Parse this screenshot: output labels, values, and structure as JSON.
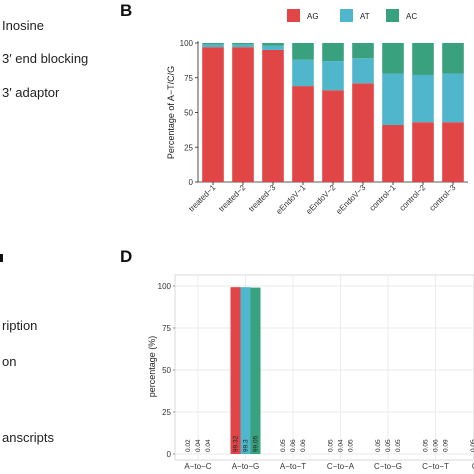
{
  "left_panel": {
    "items_top": [
      "Inosine",
      "3′ end blocking",
      "3′ adaptor"
    ],
    "items_bottom": [
      "ription",
      "on",
      "anscripts"
    ]
  },
  "panel_letters": {
    "b": "B",
    "d": "D"
  },
  "colors": {
    "AG": "#e04646",
    "AT": "#4fb6cc",
    "AC": "#3aa17e"
  },
  "chart_data": [
    {
      "type": "bar",
      "stacked": true,
      "ylabel": "Percentage of A−T/C/G",
      "xlabel": "",
      "ylim": [
        0,
        100
      ],
      "yticks": [
        0,
        25,
        50,
        75,
        100
      ],
      "legend_position": "top",
      "categories": [
        "treated−1",
        "treated−2",
        "treated−3",
        "eEndoV−1",
        "eEndoV−2",
        "eEndoV−3",
        "control−1",
        "control−2",
        "control−3"
      ],
      "series": [
        {
          "name": "AG",
          "values": [
            97,
            97,
            95,
            69,
            66,
            71,
            41,
            43,
            43
          ]
        },
        {
          "name": "AT",
          "values": [
            2,
            2,
            3,
            19,
            21,
            18,
            37,
            34,
            35
          ]
        },
        {
          "name": "AC",
          "values": [
            1,
            1,
            2,
            12,
            13,
            11,
            22,
            23,
            22
          ]
        }
      ]
    },
    {
      "type": "bar",
      "grouped": true,
      "ylabel": "percentage (%)",
      "xlabel": "",
      "ylim": [
        0,
        100
      ],
      "yticks": [
        0,
        25,
        50,
        75,
        100
      ],
      "categories": [
        "A−to−C",
        "A−to−G",
        "A−to−T",
        "C−to−A",
        "C−to−G",
        "C−to−T",
        "G−to−"
      ],
      "series": [
        {
          "values": [
            0.02,
            99.32,
            0.05,
            0.05,
            0.05,
            0.05,
            0.05
          ]
        },
        {
          "values": [
            0.04,
            99.3,
            0.06,
            0.04,
            0.05,
            0.06,
            0.0
          ]
        },
        {
          "values": [
            0.04,
            99.05,
            0.06,
            0.05,
            0.05,
            0.09,
            0.0
          ]
        }
      ],
      "data_labels": [
        [
          "0.02",
          "0.04",
          "0.04"
        ],
        [
          "99.32",
          "99.3",
          "99.05"
        ],
        [
          "0.05",
          "0.06",
          "0.06"
        ],
        [
          "0.05",
          "0.04",
          "0.05"
        ],
        [
          "0.05",
          "0.05",
          "0.05"
        ],
        [
          "0.05",
          "0.06",
          "0.09"
        ],
        [
          "0.05",
          "",
          ""
        ]
      ]
    }
  ]
}
